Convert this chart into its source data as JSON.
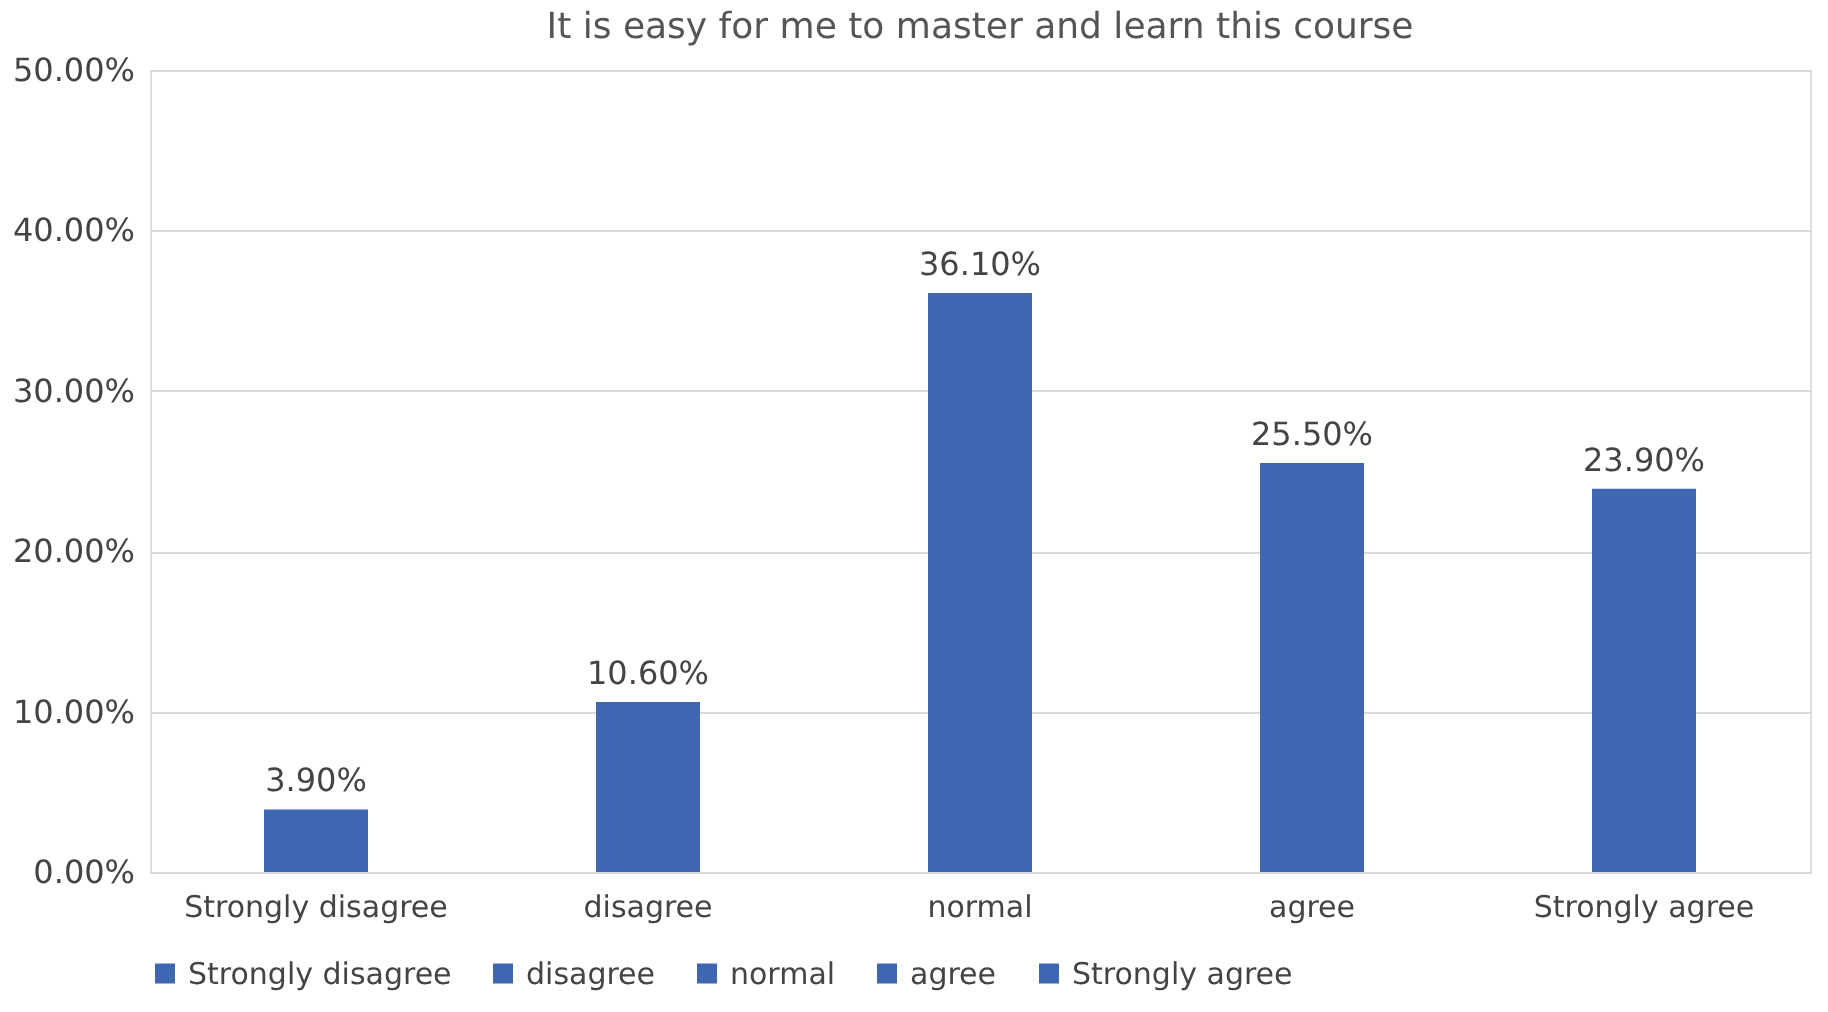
{
  "chart_data": {
    "type": "bar",
    "title": "It is easy for me to master and learn this course",
    "categories": [
      "Strongly disagree",
      "disagree",
      "normal",
      "agree",
      "Strongly agree"
    ],
    "series": [
      {
        "name": "Strongly disagree",
        "color": "#3f67b1",
        "values": [
          3.9,
          null,
          null,
          null,
          null
        ],
        "value_labels": [
          "3.90%",
          null,
          null,
          null,
          null
        ]
      },
      {
        "name": "disagree",
        "color": "#3f67b1",
        "values": [
          null,
          10.6,
          null,
          null,
          null
        ],
        "value_labels": [
          null,
          "10.60%",
          null,
          null,
          null
        ]
      },
      {
        "name": "normal",
        "color": "#3f67b1",
        "values": [
          null,
          null,
          36.1,
          null,
          null
        ],
        "value_labels": [
          null,
          null,
          "36.10%",
          null,
          null
        ]
      },
      {
        "name": "agree",
        "color": "#3f67b1",
        "values": [
          null,
          null,
          null,
          25.5,
          null
        ],
        "value_labels": [
          null,
          null,
          null,
          "25.50%",
          null
        ]
      },
      {
        "name": "Strongly agree",
        "color": "#3f67b1",
        "values": [
          null,
          null,
          null,
          null,
          23.9
        ],
        "value_labels": [
          null,
          null,
          null,
          null,
          "23.90%"
        ]
      }
    ],
    "ylim": [
      0,
      50
    ],
    "yticks": [
      {
        "value": 0,
        "label": "0.00%"
      },
      {
        "value": 10,
        "label": "10.00%"
      },
      {
        "value": 20,
        "label": "20.00%"
      },
      {
        "value": 30,
        "label": "30.00%"
      },
      {
        "value": 40,
        "label": "40.00%"
      },
      {
        "value": 50,
        "label": "50.00%"
      }
    ],
    "grid": "y",
    "legend": "bottom"
  }
}
